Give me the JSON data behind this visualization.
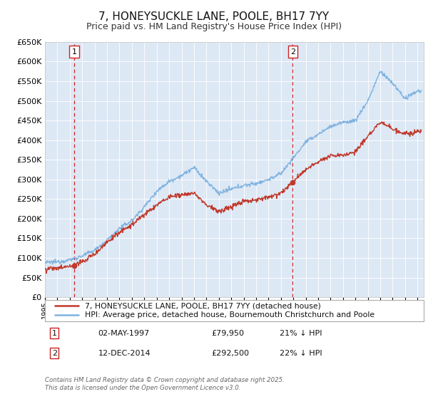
{
  "title": "7, HONEYSUCKLE LANE, POOLE, BH17 7YY",
  "subtitle": "Price paid vs. HM Land Registry's House Price Index (HPI)",
  "title_fontsize": 11,
  "subtitle_fontsize": 9,
  "background_color": "#ffffff",
  "plot_bg_color": "#dde8f5",
  "grid_color": "#ffffff",
  "hpi_color": "#7fb3e0",
  "price_color": "#c0392b",
  "vline_color": "#cc2222",
  "ylim": [
    0,
    650000
  ],
  "yticks": [
    0,
    50000,
    100000,
    150000,
    200000,
    250000,
    300000,
    350000,
    400000,
    450000,
    500000,
    550000,
    600000,
    650000
  ],
  "xmin": 1995.0,
  "xmax": 2025.5,
  "sale1_year": 1997.35,
  "sale1_price": 79950,
  "sale1_label": "1",
  "sale2_year": 2014.95,
  "sale2_price": 292500,
  "sale2_label": "2",
  "legend_line1": "7, HONEYSUCKLE LANE, POOLE, BH17 7YY (detached house)",
  "legend_line2": "HPI: Average price, detached house, Bournemouth Christchurch and Poole",
  "table_row1": [
    "1",
    "02-MAY-1997",
    "£79,950",
    "21% ↓ HPI"
  ],
  "table_row2": [
    "2",
    "12-DEC-2014",
    "£292,500",
    "22% ↓ HPI"
  ],
  "footer": "Contains HM Land Registry data © Crown copyright and database right 2025.\nThis data is licensed under the Open Government Licence v3.0.",
  "hpi_anchors_x": [
    1995,
    1996,
    1997,
    1998,
    1999,
    2000,
    2001,
    2002,
    2003,
    2004,
    2005,
    2006,
    2007,
    2008,
    2009,
    2010,
    2011,
    2012,
    2013,
    2014,
    2015,
    2016,
    2017,
    2018,
    2019,
    2020,
    2021,
    2022,
    2023,
    2024,
    2025
  ],
  "hpi_anchors_y": [
    88000,
    90000,
    95000,
    105000,
    120000,
    145000,
    175000,
    195000,
    230000,
    270000,
    295000,
    310000,
    330000,
    295000,
    265000,
    275000,
    285000,
    290000,
    300000,
    315000,
    355000,
    395000,
    415000,
    435000,
    445000,
    450000,
    500000,
    575000,
    545000,
    505000,
    525000
  ],
  "price_anchors_x": [
    1995,
    1996,
    1997,
    1998,
    1999,
    2000,
    2001,
    2002,
    2003,
    2004,
    2005,
    2006,
    2007,
    2008,
    2009,
    2010,
    2011,
    2012,
    2013,
    2014,
    2015,
    2016,
    2017,
    2018,
    2019,
    2020,
    2021,
    2022,
    2023,
    2024,
    2025
  ],
  "price_anchors_y": [
    72000,
    74000,
    78000,
    90000,
    110000,
    140000,
    165000,
    185000,
    210000,
    235000,
    255000,
    260000,
    265000,
    235000,
    218000,
    230000,
    245000,
    248000,
    255000,
    265000,
    295000,
    325000,
    345000,
    360000,
    360000,
    370000,
    410000,
    445000,
    430000,
    415000,
    420000
  ]
}
